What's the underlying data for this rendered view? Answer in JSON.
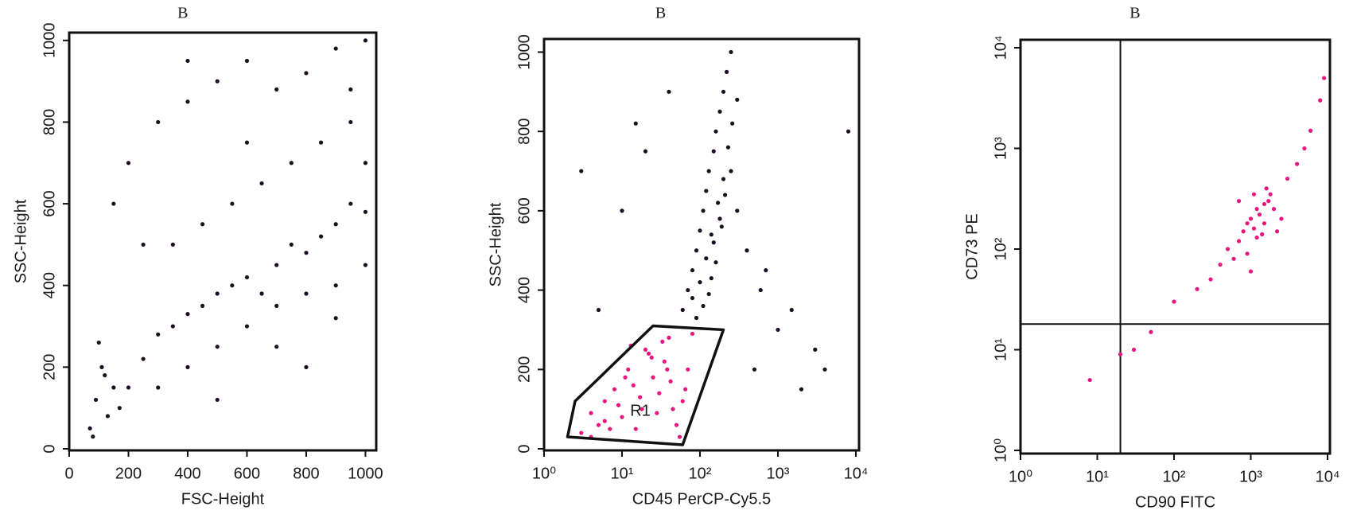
{
  "chart_data": [
    {
      "type": "scatter",
      "title": "B",
      "x_label": "FSC-Height",
      "y_label": "SSC-Height",
      "xlim": [
        0,
        1023
      ],
      "ylim": [
        0,
        1023
      ],
      "xticks": [
        0,
        200,
        400,
        600,
        800,
        1000
      ],
      "yticks": [
        0,
        200,
        400,
        600,
        800,
        1000
      ],
      "series": [
        {
          "color": "#1c1020",
          "x": [
            70,
            90,
            110,
            130,
            150,
            80,
            100,
            120,
            170,
            200,
            250,
            300,
            350,
            400,
            450,
            500,
            550,
            600,
            650,
            700,
            750,
            800,
            850,
            900,
            950,
            1000,
            300,
            400,
            500,
            600,
            700,
            800,
            900,
            1000,
            350,
            450,
            550,
            650,
            750,
            850,
            950,
            200,
            300,
            400,
            500,
            600,
            700,
            800,
            900,
            1000,
            150,
            250,
            500,
            700,
            900,
            600,
            800,
            1000,
            400,
            950
          ],
          "values": [
            50,
            120,
            200,
            80,
            150,
            30,
            260,
            180,
            100,
            150,
            220,
            280,
            300,
            330,
            350,
            380,
            400,
            420,
            380,
            450,
            500,
            480,
            520,
            550,
            600,
            580,
            150,
            200,
            250,
            300,
            350,
            380,
            400,
            450,
            500,
            550,
            600,
            650,
            700,
            750,
            800,
            700,
            800,
            850,
            900,
            950,
            880,
            920,
            980,
            1000,
            600,
            500,
            120,
            250,
            320,
            750,
            200,
            700,
            950,
            880
          ]
        }
      ]
    },
    {
      "type": "scatter",
      "title": "B",
      "x_label": "CD45 PerCP-Cy5.5",
      "y_label": "SSC-Height",
      "xscale": "log",
      "xlim": [
        1,
        10000
      ],
      "ylim": [
        0,
        1023
      ],
      "xticks": [
        {
          "value": 1,
          "label": "10⁰"
        },
        {
          "value": 10,
          "label": "10¹"
        },
        {
          "value": 100,
          "label": "10²"
        },
        {
          "value": 1000,
          "label": "10³"
        },
        {
          "value": 10000,
          "label": "10⁴"
        }
      ],
      "yticks": [
        0,
        200,
        400,
        600,
        800,
        1000
      ],
      "series": [
        {
          "color": "#1c1020",
          "x": [
            60,
            70,
            80,
            90,
            100,
            110,
            120,
            130,
            150,
            160,
            180,
            200,
            220,
            250,
            80,
            100,
            120,
            140,
            170,
            200,
            230,
            260,
            300,
            400,
            600,
            1000,
            3000,
            5,
            10,
            20,
            500,
            2000,
            8000,
            150,
            180,
            210,
            90,
            110,
            130,
            140,
            160,
            190,
            250,
            300,
            700,
            1500,
            4000,
            3,
            15,
            40
          ],
          "values": [
            350,
            400,
            450,
            500,
            550,
            600,
            650,
            700,
            750,
            800,
            850,
            900,
            950,
            1000,
            380,
            420,
            480,
            540,
            620,
            680,
            760,
            820,
            880,
            500,
            400,
            300,
            250,
            350,
            600,
            750,
            200,
            150,
            800,
            520,
            580,
            640,
            330,
            360,
            390,
            430,
            470,
            560,
            700,
            600,
            450,
            350,
            200,
            700,
            820,
            900
          ]
        },
        {
          "color": "#e8177f",
          "x": [
            3,
            4,
            5,
            6,
            8,
            10,
            12,
            15,
            18,
            20,
            25,
            30,
            35,
            40,
            50,
            60,
            70,
            80,
            4,
            6,
            9,
            14,
            22,
            33,
            45,
            55,
            7,
            11,
            17,
            28,
            38,
            65,
            13,
            24,
            42
          ],
          "values": [
            40,
            90,
            60,
            120,
            150,
            80,
            200,
            50,
            100,
            250,
            180,
            140,
            220,
            280,
            60,
            120,
            200,
            290,
            30,
            70,
            110,
            160,
            240,
            270,
            100,
            30,
            50,
            180,
            130,
            90,
            200,
            150,
            260,
            230,
            170
          ]
        }
      ],
      "gate": {
        "label": "R1",
        "x": [
          2,
          2.5,
          25,
          200,
          60
        ],
        "y": [
          30,
          120,
          310,
          300,
          10
        ]
      }
    },
    {
      "type": "scatter",
      "title": "B",
      "x_label": "CD90 FITC",
      "y_label": "CD73 PE",
      "xscale": "log",
      "yscale": "log",
      "xlim": [
        1,
        10000
      ],
      "ylim": [
        1,
        10000
      ],
      "xticks": [
        {
          "value": 1,
          "label": "10⁰"
        },
        {
          "value": 10,
          "label": "10¹"
        },
        {
          "value": 100,
          "label": "10²"
        },
        {
          "value": 1000,
          "label": "10³"
        },
        {
          "value": 10000,
          "label": "10⁴"
        }
      ],
      "yticks": [
        {
          "value": 1,
          "label": "10⁰"
        },
        {
          "value": 10,
          "label": "10¹"
        },
        {
          "value": 100,
          "label": "10²"
        },
        {
          "value": 1000,
          "label": "10³"
        },
        {
          "value": 10000,
          "label": "10⁴"
        }
      ],
      "quadrant": {
        "x": 20,
        "y": 18
      },
      "series": [
        {
          "color": "#e8177f",
          "x": [
            500,
            700,
            800,
            900,
            1000,
            1100,
            1200,
            1300,
            1500,
            1700,
            2000,
            2500,
            900,
            1200,
            1500,
            1800,
            1000,
            1400,
            600,
            400,
            300,
            200,
            100,
            50,
            30,
            3000,
            4000,
            5000,
            6000,
            8000,
            9000,
            700,
            1100,
            1600,
            2200,
            20,
            8
          ],
          "values": [
            100,
            120,
            150,
            180,
            200,
            160,
            250,
            220,
            180,
            300,
            250,
            200,
            90,
            130,
            280,
            350,
            60,
            140,
            80,
            70,
            50,
            40,
            30,
            15,
            10,
            500,
            700,
            1000,
            1500,
            3000,
            5000,
            300,
            350,
            400,
            150,
            9,
            5
          ]
        }
      ]
    }
  ]
}
